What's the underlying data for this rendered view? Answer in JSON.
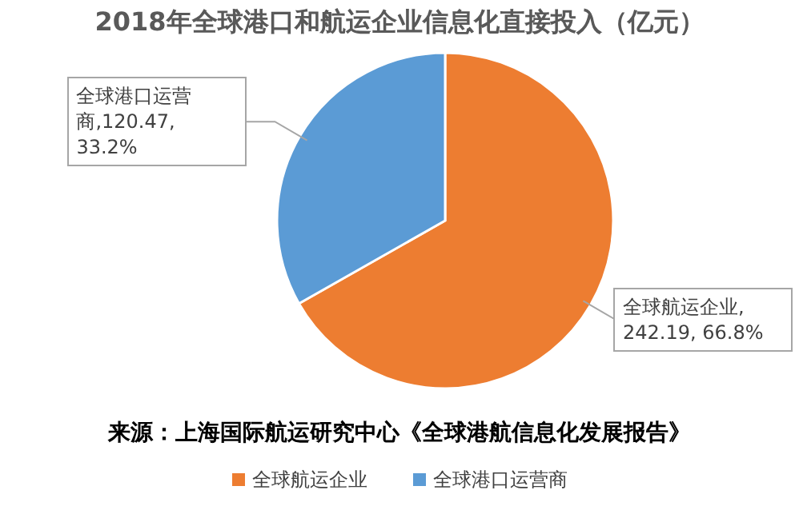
{
  "chart_data": {
    "type": "pie",
    "title": "2018年全球港口和航运企业信息化直接投入（亿元）",
    "categories": [
      "全球航运企业",
      "全球港口运营商"
    ],
    "values": [
      242.19,
      120.47
    ],
    "colors": [
      "#ed7d31",
      "#5b9bd5"
    ],
    "value_labels": [
      "全球航运企业, 242.19, 66.8%",
      "全球港口运营商,120.47, 33.2%"
    ],
    "annotations": [
      "来源：上海国际航运研究中心《全球港航信息化发展报告》"
    ],
    "legend": "bottom"
  }
}
